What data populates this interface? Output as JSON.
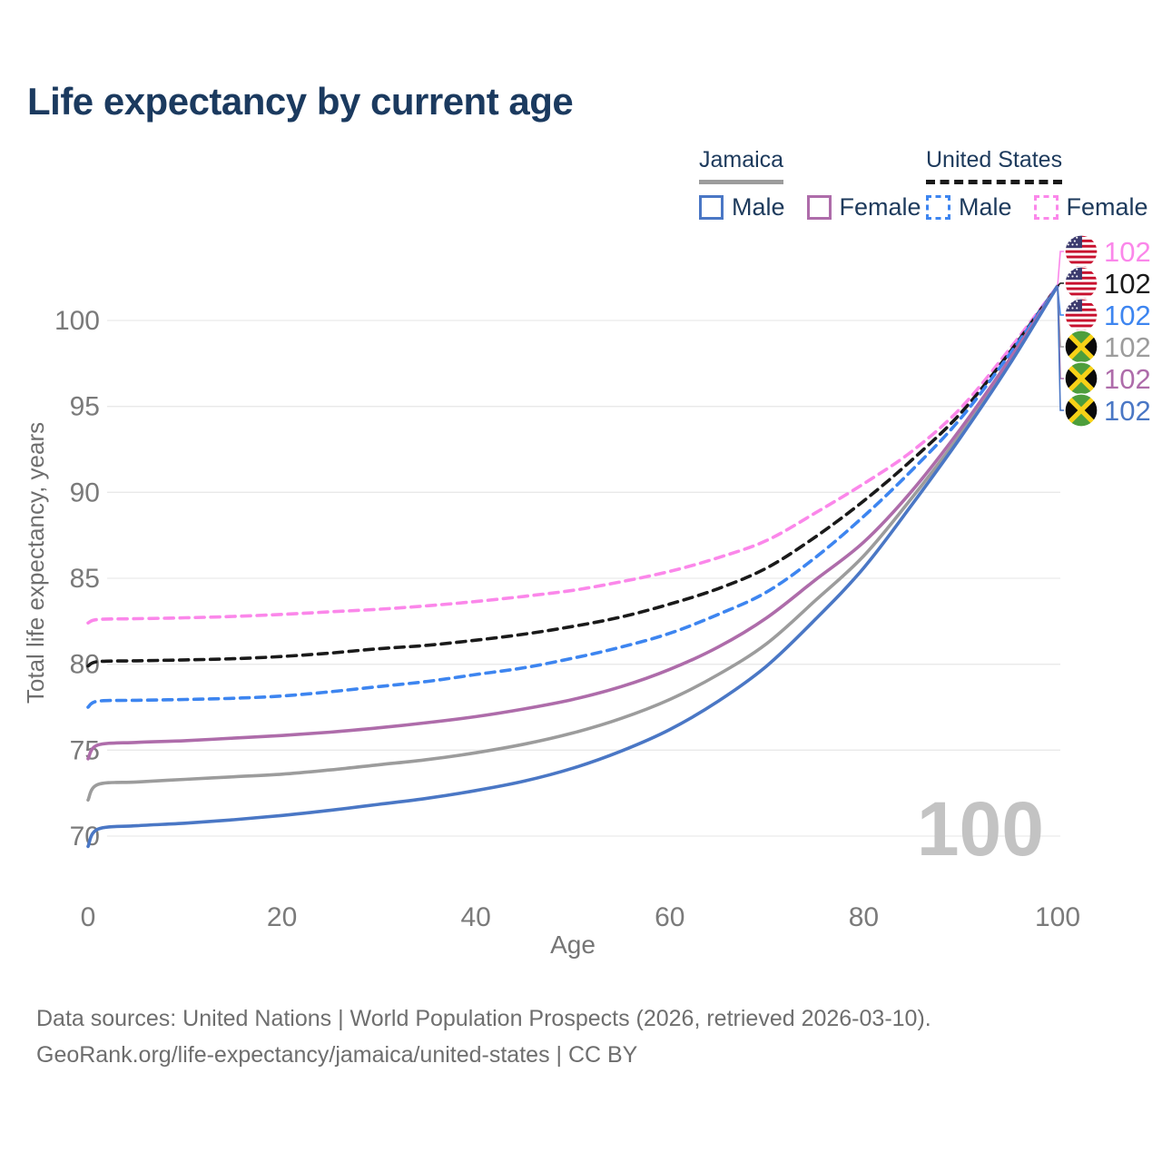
{
  "title": "Life expectancy by current age",
  "legend": {
    "countries": [
      {
        "name": "Jamaica",
        "line_style": "solid",
        "line_color": "#9c9c9c",
        "items": [
          {
            "label": "Male",
            "color": "#4a77c5",
            "style": "solid"
          },
          {
            "label": "Female",
            "color": "#ae6caa",
            "style": "solid"
          }
        ]
      },
      {
        "name": "United States",
        "line_style": "dashed",
        "line_color": "#1a1a1a",
        "items": [
          {
            "label": "Male",
            "color": "#3d85f0",
            "style": "dashed"
          },
          {
            "label": "Female",
            "color": "#fb87ea",
            "style": "dashed"
          }
        ]
      }
    ]
  },
  "chart": {
    "watermark_age": "100",
    "background": "#ffffff",
    "gridline_color": "#e9e9e9",
    "tick_color": "#7a7a7a",
    "x_axis": {
      "label": "Age",
      "ticks": [
        0,
        20,
        40,
        60,
        80,
        100
      ],
      "range": [
        0,
        100
      ]
    },
    "y_axis": {
      "label": "Total life expectancy, years",
      "ticks": [
        70,
        75,
        80,
        85,
        90,
        95,
        100
      ],
      "range": [
        68,
        103
      ]
    }
  },
  "chart_data": {
    "type": "line",
    "title": "Life expectancy by current age",
    "xlabel": "Age",
    "ylabel": "Total life expectancy, years",
    "xlim": [
      0,
      100
    ],
    "ylim": [
      68,
      103
    ],
    "grid": "horizontal",
    "ages": [
      0,
      1,
      5,
      10,
      15,
      20,
      25,
      30,
      35,
      40,
      45,
      50,
      55,
      60,
      65,
      70,
      75,
      80,
      85,
      90,
      95,
      100
    ],
    "series": [
      {
        "id": "us-female",
        "name": "United States Female",
        "flag": "us",
        "color": "#fb87ea",
        "dash": true,
        "values": [
          82.4,
          82.6,
          82.65,
          82.7,
          82.78,
          82.9,
          83.05,
          83.2,
          83.4,
          83.65,
          83.95,
          84.3,
          84.8,
          85.4,
          86.2,
          87.2,
          88.8,
          90.5,
          92.4,
          94.9,
          98.3,
          102
        ],
        "end_label": "102"
      },
      {
        "id": "us-total",
        "name": "United States Total",
        "flag": "us",
        "color": "#1a1a1a",
        "dash": true,
        "values": [
          79.9,
          80.15,
          80.2,
          80.25,
          80.32,
          80.45,
          80.65,
          80.9,
          81.1,
          81.4,
          81.75,
          82.2,
          82.75,
          83.5,
          84.4,
          85.6,
          87.4,
          89.5,
          91.9,
          94.6,
          98.1,
          102
        ],
        "end_label": "102"
      },
      {
        "id": "us-male",
        "name": "United States Male",
        "flag": "us",
        "color": "#3d85f0",
        "dash": true,
        "values": [
          77.5,
          77.85,
          77.9,
          77.95,
          78.02,
          78.15,
          78.4,
          78.7,
          79.0,
          79.4,
          79.8,
          80.35,
          81.0,
          81.8,
          82.9,
          84.2,
          86.2,
          88.6,
          91.3,
          94.3,
          98.0,
          102
        ],
        "end_label": "102"
      },
      {
        "id": "jamaica-total",
        "name": "Jamaica Total",
        "flag": "jm",
        "color": "#9c9c9c",
        "dash": false,
        "values": [
          72.1,
          73.0,
          73.15,
          73.3,
          73.45,
          73.6,
          73.85,
          74.15,
          74.45,
          74.85,
          75.35,
          76.0,
          76.85,
          77.95,
          79.4,
          81.2,
          83.7,
          86.3,
          89.7,
          93.4,
          97.5,
          102
        ],
        "end_label": "102"
      },
      {
        "id": "jamaica-female",
        "name": "Jamaica Female",
        "flag": "jm",
        "color": "#ae6caa",
        "dash": false,
        "values": [
          74.5,
          75.3,
          75.45,
          75.55,
          75.7,
          75.85,
          76.05,
          76.3,
          76.6,
          76.95,
          77.4,
          77.95,
          78.7,
          79.7,
          81.0,
          82.7,
          84.9,
          87.1,
          90.1,
          93.7,
          97.7,
          102
        ],
        "end_label": "102"
      },
      {
        "id": "jamaica-male",
        "name": "Jamaica Male",
        "flag": "jm",
        "color": "#4a77c5",
        "dash": false,
        "values": [
          69.4,
          70.4,
          70.6,
          70.75,
          70.95,
          71.2,
          71.5,
          71.85,
          72.2,
          72.65,
          73.2,
          73.95,
          74.95,
          76.2,
          77.85,
          79.9,
          82.6,
          85.6,
          89.3,
          93.2,
          97.4,
          102
        ],
        "end_label": "102"
      }
    ],
    "end_label_order": [
      "us-female",
      "us-total",
      "us-male",
      "jamaica-total",
      "jamaica-female",
      "jamaica-male"
    ],
    "legend_position": "top-right"
  },
  "footer": {
    "line1": "Data sources: United Nations | World Population Prospects (2026, retrieved 2026-03-10).",
    "line2": "GeoRank.org/life-expectancy/jamaica/united-states | CC BY"
  }
}
